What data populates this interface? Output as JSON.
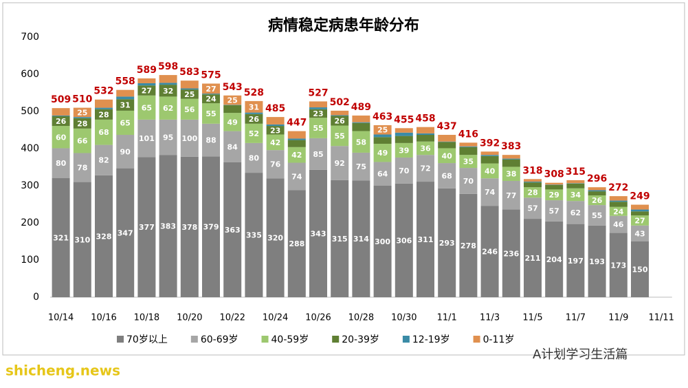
{
  "chart_data": {
    "type": "stacked_bar",
    "title": "病情稳定病患年龄分布",
    "categories": [
      "10/14",
      null,
      "10/16",
      null,
      "10/18",
      null,
      "10/20",
      null,
      "10/22",
      null,
      "10/24",
      null,
      "10/26",
      null,
      "10/28",
      null,
      "10/30",
      null,
      "11/1",
      null,
      "11/3",
      null,
      "11/5",
      null,
      "11/7",
      null,
      "11/9",
      null,
      "11/11"
    ],
    "series": [
      {
        "name": "70岁以上",
        "color": "#7f7f7f",
        "values": [
          321,
          310,
          328,
          347,
          377,
          383,
          378,
          379,
          363,
          335,
          320,
          288,
          343,
          315,
          314,
          300,
          306,
          311,
          293,
          278,
          246,
          236,
          211,
          204,
          197,
          193,
          173,
          150,
          null
        ]
      },
      {
        "name": "60-69岁",
        "color": "#a6a6a6",
        "values": [
          80,
          78,
          82,
          90,
          101,
          95,
          100,
          88,
          84,
          80,
          76,
          74,
          85,
          92,
          75,
          64,
          70,
          72,
          68,
          70,
          74,
          77,
          57,
          57,
          62,
          55,
          46,
          43,
          null
        ]
      },
      {
        "name": "40-59岁",
        "color": "#9dc86f",
        "values": [
          60,
          66,
          68,
          65,
          65,
          62,
          56,
          55,
          49,
          52,
          42,
          42,
          55,
          55,
          58,
          49,
          39,
          36,
          40,
          35,
          40,
          38,
          28,
          29,
          34,
          26,
          24,
          27,
          null
        ]
      },
      {
        "name": "20-39岁",
        "color": "#5f7f33",
        "values": [
          26,
          28,
          28,
          31,
          27,
          32,
          25,
          24,
          21,
          26,
          23,
          19,
          23,
          26,
          22,
          18,
          19,
          18,
          17,
          21,
          20,
          20,
          13,
          12,
          13,
          11,
          14,
          11,
          null
        ]
      },
      {
        "name": "12-19岁",
        "color": "#3a8ba6",
        "values": [
          2,
          3,
          4,
          7,
          6,
          5,
          3,
          2,
          1,
          4,
          4,
          4,
          5,
          2,
          2,
          7,
          9,
          4,
          1,
          2,
          3,
          2,
          2,
          1,
          1,
          3,
          3,
          5,
          null
        ]
      },
      {
        "name": "0-11岁",
        "color": "#e0904f",
        "values": [
          20,
          25,
          22,
          18,
          13,
          21,
          21,
          27,
          25,
          31,
          20,
          20,
          16,
          12,
          18,
          25,
          12,
          17,
          18,
          10,
          9,
          10,
          7,
          5,
          8,
          8,
          12,
          13,
          null
        ]
      }
    ],
    "totals": [
      509,
      510,
      532,
      558,
      589,
      598,
      583,
      575,
      543,
      528,
      485,
      447,
      527,
      502,
      489,
      463,
      455,
      458,
      437,
      416,
      392,
      383,
      318,
      308,
      315,
      296,
      272,
      249,
      null
    ],
    "ylim": [
      0,
      700
    ],
    "yticks": [
      0,
      100,
      200,
      300,
      400,
      500,
      600,
      700
    ],
    "grid": false,
    "watermarks": [
      "shicheng.news",
      "A计划学习生活篇"
    ]
  }
}
